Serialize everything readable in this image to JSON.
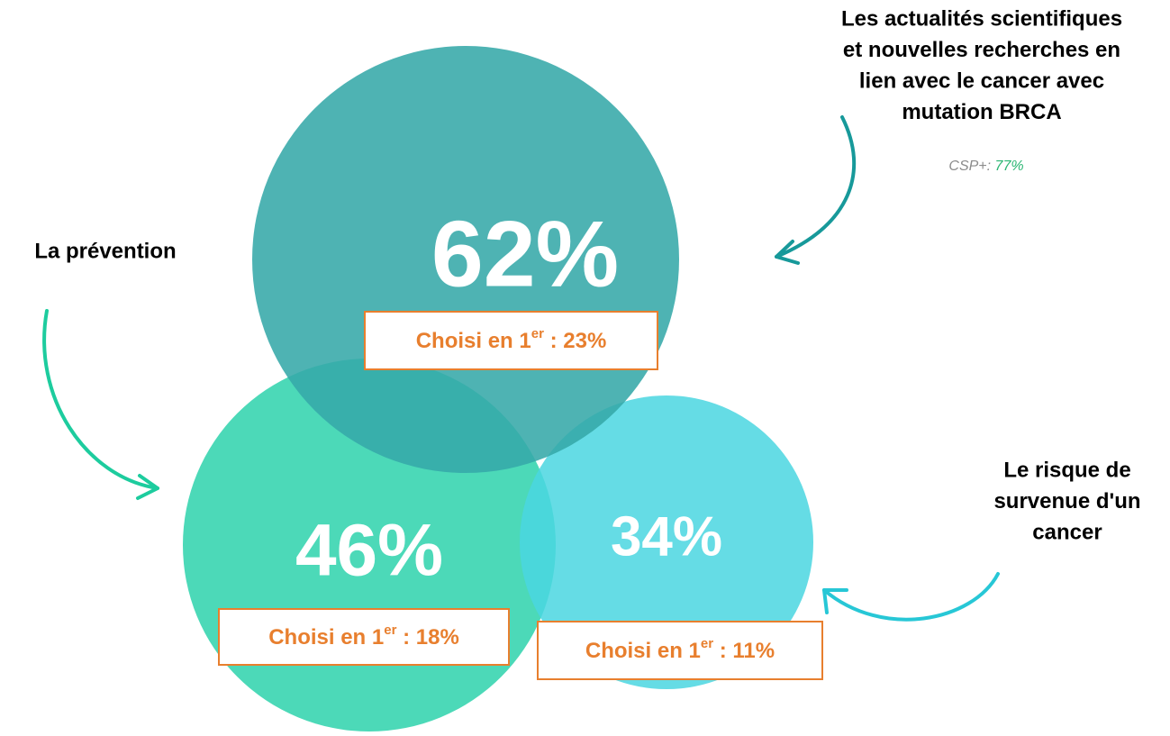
{
  "items": [
    {
      "label": [
        "Les actualités scientifiques",
        "et nouvelles recherches en",
        "lien avec le cancer avec",
        "mutation BRCA"
      ],
      "value": "62%",
      "first_text": "Choisi en 1",
      "first_sup": "er",
      "first_value": " : 23%",
      "note": {
        "label": "CSP+: ",
        "value": "77%"
      }
    },
    {
      "label": [
        "La prévention"
      ],
      "value": "46%",
      "first_text": "Choisi en 1",
      "first_sup": "er",
      "first_value": " : 18%"
    },
    {
      "label": [
        "Le risque de",
        "survenue d'un",
        "cancer"
      ],
      "value": "34%",
      "first_text": "Choisi en 1",
      "first_sup": "er",
      "first_value": " : 11%"
    }
  ]
}
